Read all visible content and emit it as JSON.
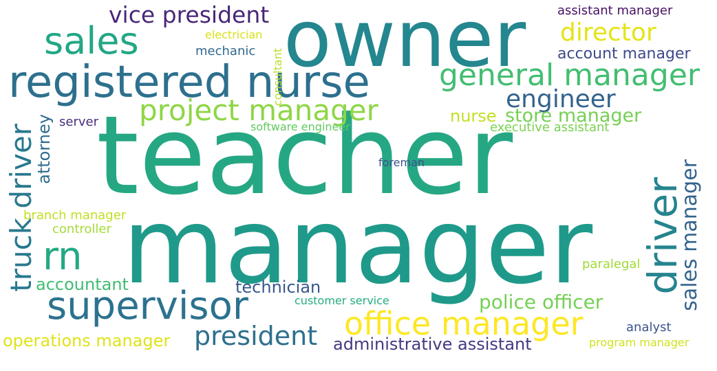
{
  "words": {
    "teacher": {
      "text": "teacher",
      "color": "#26a784"
    },
    "manager": {
      "text": "manager",
      "color": "#1f9a8a"
    },
    "owner": {
      "text": "owner",
      "color": "#24868e"
    },
    "registered_nurse": {
      "text": "registered nurse",
      "color": "#2d708e"
    },
    "sales": {
      "text": "sales",
      "color": "#22a785"
    },
    "vice_president": {
      "text": "vice president",
      "color": "#482777"
    },
    "director": {
      "text": "director",
      "color": "#e3e418"
    },
    "general_manager": {
      "text": "general manager",
      "color": "#42be71"
    },
    "project_manager": {
      "text": "project manager",
      "color": "#8ed645"
    },
    "engineer": {
      "text": "engineer",
      "color": "#33638d"
    },
    "store_manager": {
      "text": "store manager",
      "color": "#75d054"
    },
    "executive_assistant": {
      "text": "executive assistant",
      "color": "#7ad151"
    },
    "nurse": {
      "text": "nurse",
      "color": "#c2df23"
    },
    "software_engineer": {
      "text": "software engineer",
      "color": "#60ca60"
    },
    "server": {
      "text": "server",
      "color": "#472d7b"
    },
    "foreman": {
      "text": "foreman",
      "color": "#3b528b"
    },
    "truck_driver": {
      "text": "truck driver",
      "color": "#29798e"
    },
    "attorney": {
      "text": "attorney",
      "color": "#2f6c8e"
    },
    "consultant": {
      "text": "consultant",
      "color": "#b8de29"
    },
    "electrician": {
      "text": "electrician",
      "color": "#d8e219"
    },
    "mechanic": {
      "text": "mechanic",
      "color": "#31688e"
    },
    "assistant_manager": {
      "text": "assistant manager",
      "color": "#471063"
    },
    "account_manager": {
      "text": "account manager",
      "color": "#3e4a89"
    },
    "driver": {
      "text": "driver",
      "color": "#25848e"
    },
    "sales_manager": {
      "text": "sales manager",
      "color": "#33638d"
    },
    "rn": {
      "text": "rn",
      "color": "#23a983"
    },
    "supervisor": {
      "text": "supervisor",
      "color": "#2c728e"
    },
    "office_manager": {
      "text": "office manager",
      "color": "#fde725"
    },
    "president": {
      "text": "president",
      "color": "#2d708e"
    },
    "operations_manager": {
      "text": "operations manager",
      "color": "#dfe318"
    },
    "administrative_assistant": {
      "text": "administrative assistant",
      "color": "#443983"
    },
    "accountant": {
      "text": "accountant",
      "color": "#40bd72"
    },
    "technician": {
      "text": "technician",
      "color": "#38588c"
    },
    "customer_service": {
      "text": "customer service",
      "color": "#25ac82"
    },
    "police_officer": {
      "text": "police officer",
      "color": "#75d054"
    },
    "analyst": {
      "text": "analyst",
      "color": "#3a548c"
    },
    "program_manager": {
      "text": "program manager",
      "color": "#d0e11c"
    },
    "paralegal": {
      "text": "paralegal",
      "color": "#a0da39"
    },
    "branch_manager": {
      "text": "branch manager",
      "color": "#c2df23"
    },
    "controller": {
      "text": "controller",
      "color": "#a5db36"
    }
  }
}
